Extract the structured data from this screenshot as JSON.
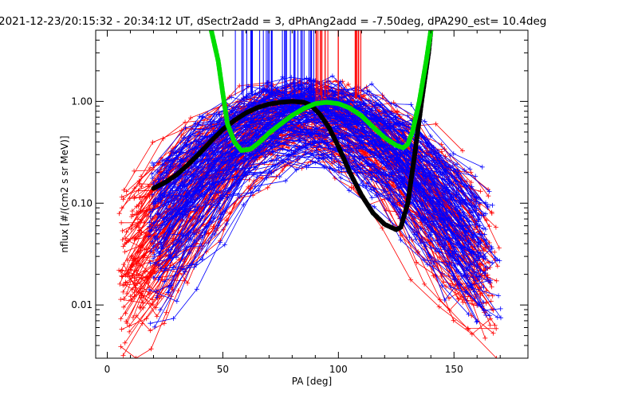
{
  "chart_data": {
    "type": "line",
    "title": "2021-12-23/20:15:32 - 20:34:12 UT, dSectr2add = 3, dPhAng2add = -7.50deg, dPA290_est=  10.4deg",
    "xlabel": "PA [deg]",
    "ylabel": "nflux [#/(cm2 s sr MeV)]",
    "xlim": [
      -5,
      182
    ],
    "ylim": [
      0.003,
      5.0
    ],
    "yscale": "log",
    "x_ticks": [
      0,
      50,
      100,
      150
    ],
    "x_tick_labels": [
      "0",
      "50",
      "100",
      "150"
    ],
    "y_ticks": [
      0.01,
      0.1,
      1.0
    ],
    "y_tick_labels": [
      "0.01",
      "0.10",
      "1.00"
    ],
    "grid": false,
    "colors": {
      "red_traces": "#ff0000",
      "blue_traces": "#0000ff",
      "fit_black": "#000000",
      "fit_green": "#00dd00"
    },
    "series": [
      {
        "color": "#000000",
        "style": "thick-dashed",
        "x": [
          20,
          25,
          30,
          35,
          40,
          45,
          50,
          55,
          60,
          65,
          70,
          75,
          80,
          85,
          88,
          92,
          96,
          100,
          105,
          110,
          115,
          120,
          125,
          127,
          130,
          133,
          136,
          139,
          140
        ],
        "y": [
          0.14,
          0.16,
          0.19,
          0.24,
          0.31,
          0.41,
          0.53,
          0.65,
          0.77,
          0.87,
          0.94,
          0.98,
          1.0,
          0.98,
          0.92,
          0.75,
          0.55,
          0.36,
          0.2,
          0.12,
          0.08,
          0.062,
          0.055,
          0.058,
          0.1,
          0.3,
          1.0,
          3.0,
          5.0
        ]
      },
      {
        "color": "#00dd00",
        "style": "thick-dashed",
        "x": [
          45,
          48,
          50,
          52,
          55,
          58,
          62,
          66,
          70,
          75,
          80,
          85,
          90,
          95,
          100,
          105,
          110,
          115,
          120,
          125,
          128,
          130,
          132,
          135,
          138,
          140
        ],
        "y": [
          5.0,
          2.5,
          1.2,
          0.6,
          0.4,
          0.33,
          0.34,
          0.4,
          0.49,
          0.6,
          0.73,
          0.85,
          0.95,
          0.98,
          0.95,
          0.86,
          0.72,
          0.56,
          0.44,
          0.37,
          0.35,
          0.38,
          0.5,
          1.0,
          2.5,
          5.0
        ]
      }
    ]
  }
}
